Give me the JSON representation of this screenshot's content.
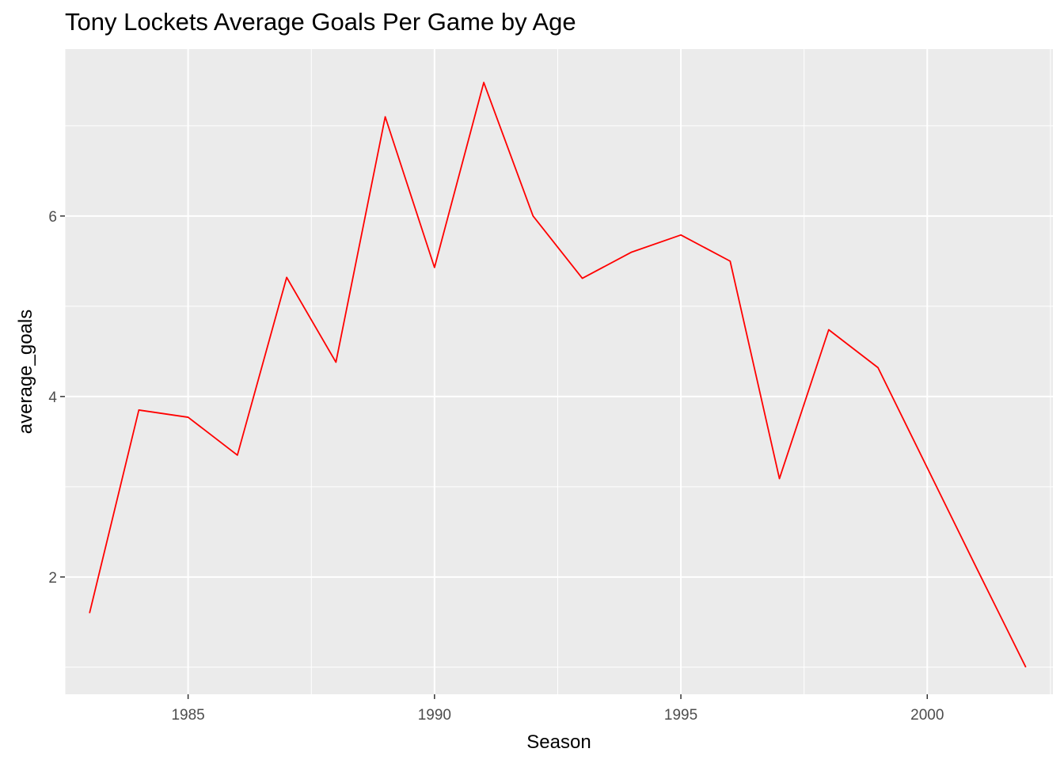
{
  "chart_data": {
    "type": "line",
    "title": "Tony Lockets Average Goals Per Game by Age",
    "xlabel": "Season",
    "ylabel": "average_goals",
    "x": [
      1983,
      1984,
      1985,
      1986,
      1987,
      1988,
      1989,
      1990,
      1991,
      1992,
      1993,
      1994,
      1995,
      1996,
      1997,
      1998,
      1999,
      2000,
      2001,
      2002
    ],
    "series": [
      {
        "values": [
          1.6,
          3.85,
          3.77,
          3.35,
          5.32,
          4.38,
          7.1,
          5.43,
          7.48,
          6.0,
          5.31,
          5.6,
          5.79,
          5.5,
          3.09,
          4.74,
          4.32,
          3.21,
          2.1,
          1.0
        ]
      }
    ],
    "xlim": [
      1982.5,
      2002.55
    ],
    "ylim": [
      0.7,
      7.85
    ],
    "x_ticks": [
      1985,
      1990,
      1995,
      2000
    ],
    "y_ticks": [
      2,
      4,
      6
    ],
    "grid": true,
    "line_color": "#ff0000",
    "panel_color": "#ebebeb",
    "grid_color": "#ffffff"
  }
}
